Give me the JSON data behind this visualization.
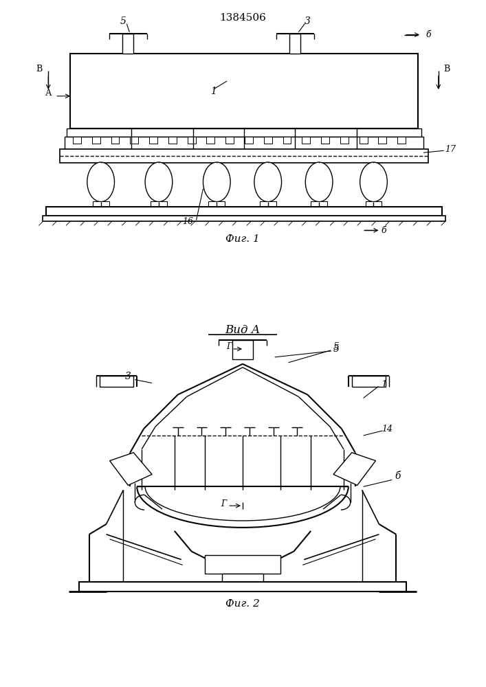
{
  "title": "1384506",
  "fig1_label": "Фиг. 1",
  "fig2_label": "Фиг. 2",
  "vid_label": "Вид А",
  "background_color": "#ffffff",
  "line_color": "#000000"
}
